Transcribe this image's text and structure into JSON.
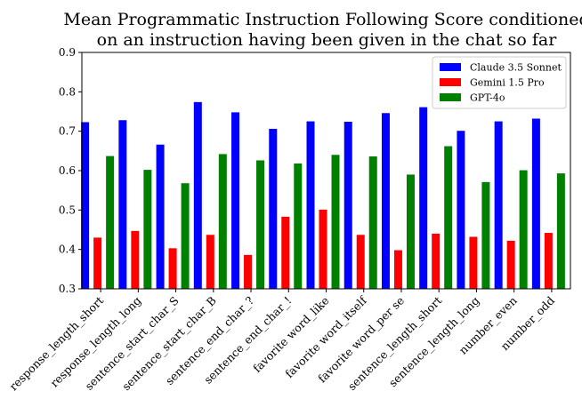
{
  "chart_data": {
    "type": "bar",
    "title": "Mean Programmatic Instruction Following Score conditioned on an instruction having been given in the chat so far",
    "title_lines": [
      "Mean Programmatic Instruction Following Score conditioned",
      "on an instruction having been given in the chat so far"
    ],
    "xlabel": "",
    "ylabel": "",
    "ylim": [
      0.3,
      0.9
    ],
    "yticks": [
      0.3,
      0.4,
      0.5,
      0.6,
      0.7,
      0.8,
      0.9
    ],
    "ytick_labels": [
      "0.3",
      "0.4",
      "0.5",
      "0.6",
      "0.7",
      "0.8",
      "0.9"
    ],
    "grid": false,
    "legend_position": "top-right",
    "categories": [
      "response_length_short",
      "response_length_long",
      "sentence_start_char_S",
      "sentence_start_char_B",
      "sentence_end_char_?",
      "sentence_end_char_!",
      "favorite word_like",
      "favorite word_itself",
      "favorite word_per se",
      "sentence_length_short",
      "sentence_length_long",
      "number_even",
      "number_odd"
    ],
    "series": [
      {
        "name": "Claude 3.5 Sonnet",
        "color": "#0000ff",
        "values": [
          0.723,
          0.728,
          0.666,
          0.774,
          0.748,
          0.706,
          0.725,
          0.724,
          0.746,
          0.761,
          0.701,
          0.725,
          0.732
        ]
      },
      {
        "name": "Gemini 1.5 Pro",
        "color": "#ff0000",
        "values": [
          0.43,
          0.447,
          0.403,
          0.437,
          0.386,
          0.483,
          0.501,
          0.437,
          0.398,
          0.44,
          0.432,
          0.422,
          0.442
        ]
      },
      {
        "name": "GPT-4o",
        "color": "#008000",
        "values": [
          0.637,
          0.602,
          0.568,
          0.642,
          0.626,
          0.618,
          0.64,
          0.636,
          0.59,
          0.662,
          0.571,
          0.601,
          0.593
        ]
      }
    ]
  }
}
